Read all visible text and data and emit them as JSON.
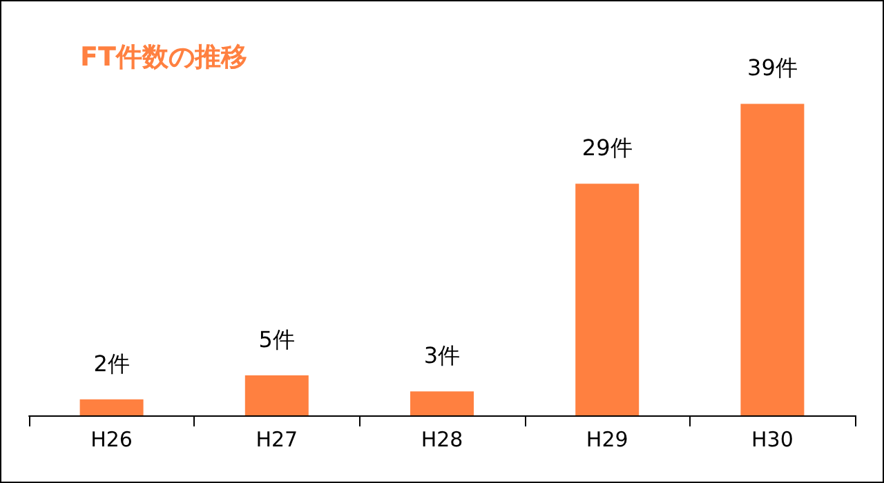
{
  "chart_data": {
    "type": "bar",
    "title": "FT件数の推移",
    "categories": [
      "H26",
      "H27",
      "H28",
      "H29",
      "H30"
    ],
    "values": [
      2,
      5,
      3,
      29,
      39
    ],
    "value_labels": [
      "2件",
      "5件",
      "3件",
      "29件",
      "39件"
    ],
    "color": "#ff8040"
  }
}
